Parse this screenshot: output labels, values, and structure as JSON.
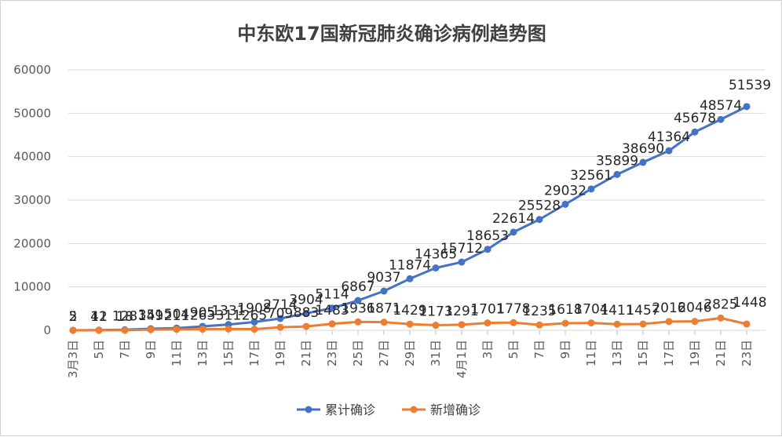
{
  "chart_data": {
    "type": "line",
    "title": "中东欧17国新冠肺炎确诊病例趋势图",
    "ylim": [
      0,
      60000
    ],
    "yticks": [
      0,
      10000,
      20000,
      30000,
      40000,
      50000,
      60000
    ],
    "xtick_labels": [
      "3月3日",
      "5日",
      "7日",
      "9日",
      "11日",
      "13日",
      "15日",
      "17日",
      "19日",
      "21日",
      "23日",
      "25日",
      "27日",
      "29日",
      "31日",
      "4月1日",
      "3日",
      "5日",
      "7日",
      "9日",
      "11日",
      "13日",
      "15日",
      "17日",
      "19日",
      "21日",
      "23日"
    ],
    "grid": "horizontal",
    "legend_position": "bottom",
    "series": [
      {
        "name": "累计确诊",
        "color": "#4472C4",
        "values": [
          5,
          41,
          128,
          351,
          504,
          905,
          1331,
          1908,
          2714,
          3904,
          5114,
          6867,
          9037,
          11874,
          14365,
          15712,
          18653,
          22614,
          25528,
          29032,
          32561,
          35899,
          38690,
          41364,
          45678,
          48574,
          51539
        ],
        "labels": [
          "5",
          "41",
          "128",
          "351",
          "504",
          "905",
          "1331",
          "1908",
          "2714",
          "3904",
          "5114",
          "6867",
          "9037",
          "11874",
          "14365",
          "15712",
          "18653",
          "22614",
          "25528",
          "29032",
          "32561",
          "35899",
          "38690",
          "41364",
          "45678",
          "48574",
          "51539"
        ]
      },
      {
        "name": "新增确诊",
        "color": "#ED7D31",
        "values": [
          2,
          12,
          18,
          149,
          211,
          263,
          311,
          265,
          709,
          883,
          1483,
          1936,
          1871,
          1429,
          1173,
          1291,
          1701,
          1778,
          1235,
          1618,
          1704,
          1411,
          1457,
          2016,
          2046,
          2825,
          1448
        ],
        "labels": [
          "2",
          "12",
          "18",
          "149",
          "211",
          "263",
          "311",
          "265",
          "709",
          "883",
          "1483",
          "1936",
          "1871",
          "1429",
          "1173",
          "1291",
          "1701",
          "1778",
          "1235",
          "1618",
          "1704",
          "1411",
          "1457",
          "2016",
          "2046",
          "2825",
          "1448"
        ]
      }
    ]
  }
}
